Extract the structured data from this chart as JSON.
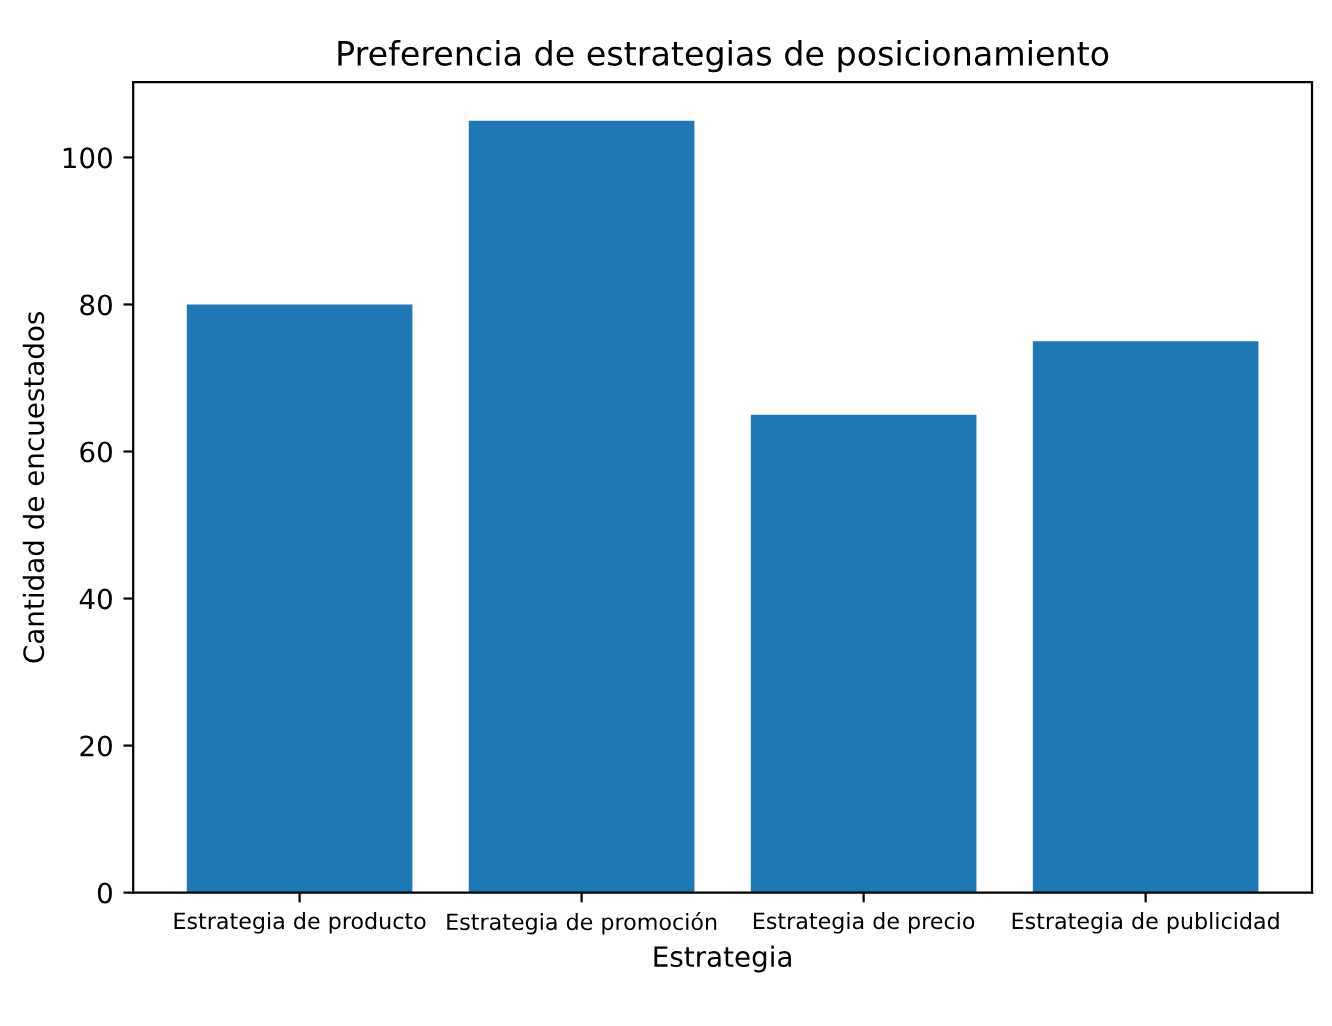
{
  "chart_data": {
    "type": "bar",
    "title": "Preferencia de estrategias de posicionamiento",
    "xlabel": "Estrategia",
    "ylabel": "Cantidad de encuestados",
    "categories": [
      "Estrategia de producto",
      "Estrategia de promoción",
      "Estrategia de precio",
      "Estrategia de publicidad"
    ],
    "values": [
      80,
      105,
      65,
      75
    ],
    "color": "#1f77b4",
    "ylim": [
      0,
      110.25
    ],
    "yticks": [
      0,
      20,
      40,
      60,
      80,
      100
    ],
    "grid": false,
    "legend": false
  }
}
